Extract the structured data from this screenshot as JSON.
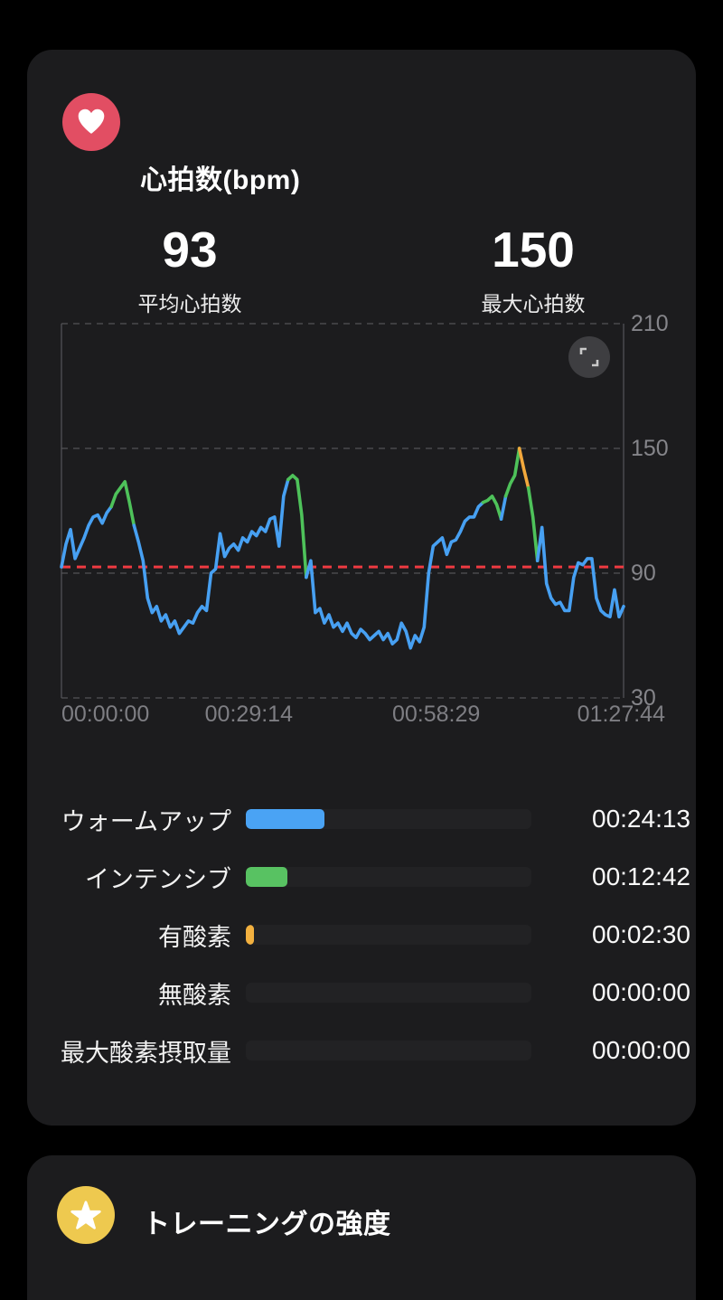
{
  "heart_rate_card": {
    "icon": "heart-icon",
    "icon_bg": "#e24e63",
    "title": "心拍数(bpm)",
    "stats": [
      {
        "value": "93",
        "label": "平均心拍数"
      },
      {
        "value": "150",
        "label": "最大心拍数"
      }
    ],
    "chart_data": {
      "type": "line",
      "title": "心拍数(bpm)",
      "ylabel": "bpm",
      "ylim": [
        30,
        210
      ],
      "y_ticks": [
        210,
        150,
        90,
        30
      ],
      "x_ticks": [
        "00:00:00",
        "00:29:14",
        "00:58:29",
        "01:27:44"
      ],
      "duration": "01:27:44",
      "average_line": {
        "value": 93,
        "color": "#ee3a41",
        "style": "dashed"
      },
      "zone_thresholds": {
        "intensive_min": 120,
        "aerobic_min": 140
      },
      "zone_colors": {
        "warmup": "#47a0f2",
        "intensive": "#4ec25a",
        "aerobic": "#f2a83c"
      },
      "grid_color": "#49494d",
      "axis_color": "#55555a",
      "tick_label_color": "#85858a",
      "series": [
        {
          "name": "heart_rate_bpm",
          "values": [
            93,
            104,
            111,
            97,
            102,
            107,
            113,
            117,
            118,
            114,
            119,
            122,
            128,
            131,
            134,
            124,
            113,
            105,
            96,
            78,
            71,
            74,
            67,
            70,
            64,
            67,
            61,
            64,
            67,
            66,
            71,
            74,
            72,
            90,
            92,
            109,
            98,
            102,
            104,
            101,
            107,
            105,
            110,
            108,
            112,
            110,
            116,
            117,
            103,
            127,
            135,
            137,
            135,
            118,
            88,
            96,
            71,
            73,
            66,
            70,
            64,
            66,
            62,
            66,
            61,
            59,
            63,
            61,
            58,
            60,
            62,
            58,
            61,
            56,
            58,
            66,
            62,
            54,
            60,
            57,
            64,
            90,
            103,
            105,
            107,
            99,
            105,
            106,
            110,
            115,
            117,
            117,
            122,
            124,
            125,
            127,
            123,
            116,
            127,
            133,
            137,
            150,
            140,
            131,
            117,
            96,
            112,
            85,
            78,
            75,
            76,
            72,
            72,
            88,
            95,
            94,
            97,
            97,
            78,
            72,
            70,
            69,
            82,
            69,
            74
          ]
        }
      ]
    },
    "zones": {
      "total_seconds": 5264,
      "rows": [
        {
          "label": "ウォームアップ",
          "time": "00:24:13",
          "seconds": 1453,
          "color": "#4aa3f4"
        },
        {
          "label": "インテンシブ",
          "time": "00:12:42",
          "seconds": 762,
          "color": "#58c262"
        },
        {
          "label": "有酸素",
          "time": "00:02:30",
          "seconds": 150,
          "color": "#f2b03f"
        },
        {
          "label": "無酸素",
          "time": "00:00:00",
          "seconds": 0,
          "color": "#8e8e93"
        },
        {
          "label": "最大酸素摂取量",
          "time": "00:00:00",
          "seconds": 0,
          "color": "#8e8e93"
        }
      ]
    },
    "expand_icon": "expand-icon"
  },
  "training_intensity_card": {
    "icon": "star-icon",
    "icon_bg": "#eec94f",
    "title": "トレーニングの強度"
  }
}
